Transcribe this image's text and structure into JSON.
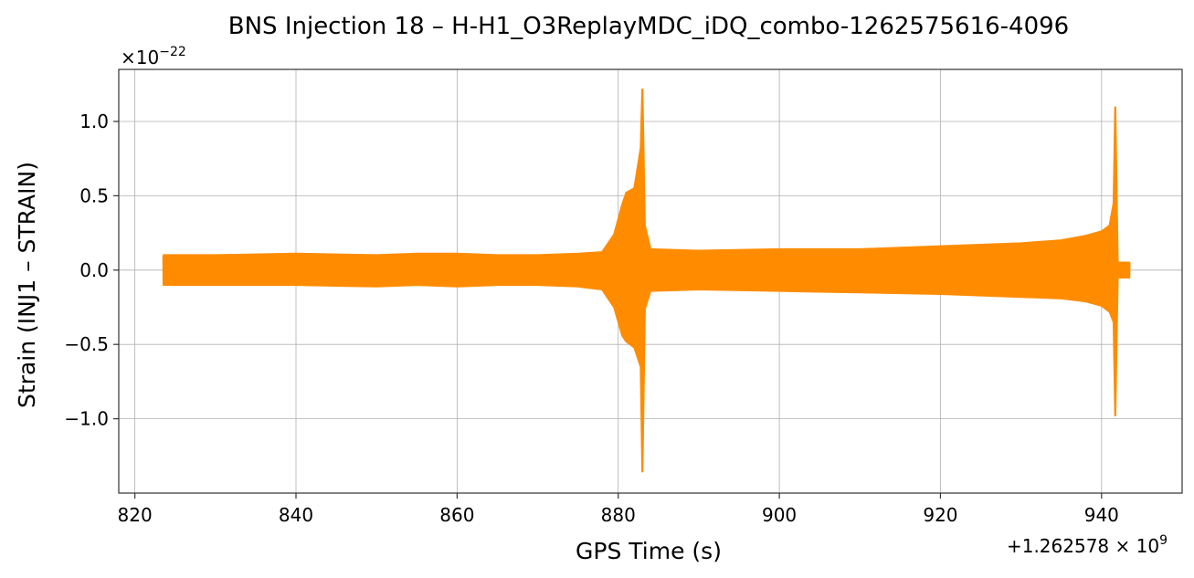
{
  "chart_data": {
    "type": "line",
    "title": "BNS Injection 18 – H-H1_O3ReplayMDC_iDQ_combo-1262575616-4096",
    "xlabel": "GPS Time (s)",
    "ylabel": "Strain (INJ1 – STRAIN)",
    "x_offset_text": "+1.262578 × 10",
    "x_offset_exponent": "9",
    "y_scale_text": "×10",
    "y_scale_exponent": "−22",
    "y_scale_factor": 1e-22,
    "xlim": [
      818,
      950
    ],
    "ylim": [
      -1.5,
      1.35
    ],
    "x_ticks": [
      820,
      840,
      860,
      880,
      900,
      920,
      940
    ],
    "x_tick_labels": [
      "820",
      "840",
      "860",
      "880",
      "900",
      "920",
      "940"
    ],
    "y_ticks": [
      -1.0,
      -0.5,
      0.0,
      0.5,
      1.0
    ],
    "y_tick_labels": [
      "−1.0",
      "−0.5",
      "0.0",
      "0.5",
      "1.0"
    ],
    "grid": true,
    "series": [
      {
        "color": "#ff8c00",
        "description_points": "amplitude envelope of the plotted strain (upper / lower extent), in units of 1e-22",
        "x": [
          823.5,
          830,
          840,
          850,
          855,
          860,
          865,
          870,
          875,
          878,
          879.5,
          880.5,
          881,
          882,
          882.8,
          883.0,
          883.3,
          884,
          890,
          900,
          910,
          920,
          925,
          930,
          935,
          938,
          940,
          941,
          941.5,
          941.7,
          942,
          943.5
        ],
        "upper": [
          0.1,
          0.1,
          0.11,
          0.1,
          0.11,
          0.11,
          0.1,
          0.1,
          0.11,
          0.12,
          0.24,
          0.44,
          0.52,
          0.55,
          0.82,
          1.22,
          0.3,
          0.14,
          0.13,
          0.14,
          0.14,
          0.16,
          0.17,
          0.18,
          0.2,
          0.23,
          0.26,
          0.3,
          0.45,
          1.1,
          0.05,
          0.05
        ],
        "lower": [
          -0.1,
          -0.1,
          -0.1,
          -0.11,
          -0.1,
          -0.11,
          -0.1,
          -0.1,
          -0.11,
          -0.13,
          -0.25,
          -0.44,
          -0.48,
          -0.52,
          -0.65,
          -1.36,
          -0.26,
          -0.14,
          -0.13,
          -0.14,
          -0.15,
          -0.16,
          -0.17,
          -0.18,
          -0.19,
          -0.21,
          -0.24,
          -0.28,
          -0.35,
          -0.98,
          -0.05,
          -0.05
        ]
      }
    ]
  }
}
